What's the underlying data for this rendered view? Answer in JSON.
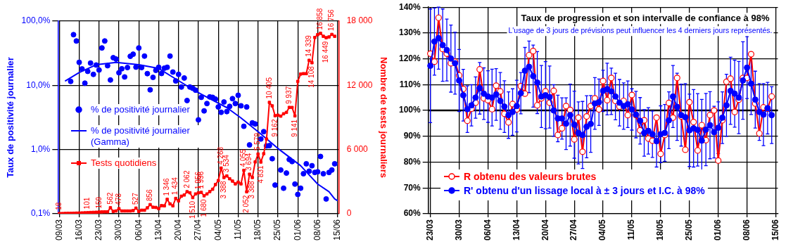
{
  "chart_data": [
    {
      "type": "line",
      "ylabel": "Taux de positivité journalier",
      "y2label": "Nombre de tests journaliers",
      "log": "y",
      "grid": true,
      "legend": "left",
      "categories": [
        "09/03",
        null,
        null,
        null,
        null,
        null,
        null,
        "16/03",
        null,
        null,
        null,
        null,
        null,
        null,
        "23/03",
        null,
        null,
        null,
        null,
        null,
        null,
        "30/03",
        null,
        null,
        null,
        null,
        null,
        null,
        "06/04",
        null,
        null,
        null,
        null,
        null,
        null,
        "13/04",
        null,
        null,
        null,
        null,
        null,
        null,
        "20/04",
        null,
        null,
        null,
        null,
        null,
        null,
        "27/04",
        null,
        null,
        null,
        null,
        null,
        null,
        "04/05",
        null,
        null,
        null,
        null,
        null,
        null,
        "11/05",
        null,
        null,
        null,
        null,
        null,
        null,
        "18/05",
        null,
        null,
        null,
        null,
        null,
        null,
        "25/05",
        null,
        null,
        null,
        null,
        null,
        null,
        "01/06",
        null,
        null,
        null,
        null,
        null,
        null,
        "08/06",
        null,
        null,
        null,
        null,
        null,
        null,
        "15/06"
      ],
      "ylim": [
        0.1,
        100
      ],
      "yticks": [
        {
          "value": 0.1,
          "label": "0,1%"
        },
        {
          "value": 1,
          "label": "1,0%"
        },
        {
          "value": 10,
          "label": "10,0%"
        },
        {
          "value": 100,
          "label": "100,0%"
        }
      ],
      "y2lim": [
        0,
        18000
      ],
      "y2ticks": [
        0,
        {
          "value": 6000,
          "label": "6 000"
        },
        {
          "value": 12000,
          "label": "12 000"
        },
        {
          "value": 18000,
          "label": "18 000"
        }
      ],
      "series": [
        {
          "name": "% de positivité journalier",
          "type": "scatter",
          "marker": "circle",
          "color": "#0000ff",
          "values": [
            null,
            null,
            null,
            null,
            11.5,
            61.5,
            49,
            22.8,
            18,
            10.8,
            16.5,
            22.2,
            14.8,
            20.7,
            17.3,
            38.2,
            49,
            20.2,
            12.1,
            26.9,
            25.6,
            15.7,
            18.1,
            13.5,
            18.9,
            28.3,
            30.5,
            19.2,
            38.2,
            18.9,
            28.5,
            15.2,
            8.5,
            13.3,
            17.1,
            19.1,
            15.3,
            18.5,
            19.1,
            28.5,
            16.1,
            11.7,
            14.8,
            9.4,
            13,
            5.8,
            9.4,
            9,
            8.4,
            2.9,
            6.5,
            4,
            5.2,
            6.6,
            6.5,
            6.1,
            4.6,
            3.8,
            5.5,
            3.9,
            4.7,
            6.2,
            5.2,
            7,
            4.8,
            2.3,
            4.6,
            1.18,
            2.6,
            2.5,
            null,
            1.46,
            1.9,
            1.14,
            1.15,
            0.72,
            0.28,
            null,
            0.48,
            0.25,
            0.43,
            0.7,
            0.65,
            0.29,
            0.2,
            0.25,
            0.42,
            0.6,
            0.46,
            0.56,
            0.44,
            0.45,
            0.78,
            0.42,
            0.17,
            0.44,
            0.48,
            0.6,
            null
          ]
        },
        {
          "name": "% de positivité journalier (Gamma)",
          "marker": "none",
          "color": "#0000ff",
          "values": [
            null,
            null,
            11.6,
            null,
            null,
            null,
            null,
            15.8,
            null,
            null,
            null,
            null,
            null,
            20.9,
            null,
            null,
            null,
            null,
            null,
            null,
            22.8,
            null,
            null,
            null,
            null,
            null,
            null,
            null,
            20.9,
            null,
            null,
            null,
            null,
            null,
            null,
            18.3,
            null,
            null,
            null,
            null,
            null,
            null,
            11.8,
            null,
            null,
            null,
            null,
            null,
            8.1,
            null,
            null,
            null,
            null,
            6.2,
            null,
            null,
            null,
            null,
            null,
            4.5,
            null,
            null,
            null,
            null,
            3.1,
            null,
            null,
            null,
            null,
            null,
            1.9,
            null,
            null,
            null,
            null,
            null,
            null,
            1.04,
            null,
            null,
            null,
            null,
            null,
            null,
            null,
            0.56,
            null,
            null,
            null,
            null,
            null,
            0.29,
            null,
            null,
            null,
            0.22,
            null,
            0.17,
            0.16
          ]
        },
        {
          "name": "Tests quotidiens",
          "axis": "y2",
          "marker": "square",
          "color": "#ff0000",
          "values": [
            18,
            20,
            30,
            40,
            40,
            50,
            60,
            70,
            80,
            90,
            101,
            120,
            130,
            140,
            159,
            170,
            180,
            180,
            562,
            220,
            260,
            478,
            260,
            260,
            260,
            260,
            300,
            527,
            220,
            330,
            330,
            550,
            856,
            610,
            590,
            480,
            760,
            740,
            1346,
            920,
            740,
            1434,
            1200,
            1640,
            1750,
            2062,
            1960,
            1510,
            1850,
            1956,
            1996,
            1680,
            1850,
            2070,
            2290,
            2730,
            3100,
            4268,
            3388,
            3534,
            3270,
            3050,
            2790,
            2950,
            2790,
            4055,
            2052,
            3694,
            3388,
            4840,
            5579,
            4831,
            5610,
            6980,
            10405,
            10080,
            9162,
            9210,
            9120,
            9340,
            9470,
            9937,
            9930,
            9141,
            12370,
            13050,
            13090,
            13090,
            14339,
            14108,
            16470,
            16730,
            16858,
            16580,
            16449,
            16520,
            16756,
            16580,
            null
          ],
          "value_labels": [
            "18",
            null,
            null,
            null,
            null,
            null,
            null,
            null,
            null,
            null,
            "101",
            null,
            null,
            null,
            "159",
            null,
            null,
            null,
            "562",
            null,
            null,
            "478",
            null,
            null,
            null,
            null,
            null,
            "527",
            null,
            null,
            null,
            null,
            "856",
            null,
            null,
            null,
            null,
            null,
            "1 346",
            null,
            null,
            "1 434",
            null,
            null,
            null,
            "2 062",
            null,
            "1 510",
            null,
            "1 956",
            "1 996",
            "1 680",
            null,
            null,
            null,
            null,
            null,
            "4 268",
            "3 388",
            "3 534",
            null,
            null,
            null,
            null,
            null,
            "4 055",
            "2 052",
            "3 694",
            "3 388",
            null,
            "5 579",
            "4 831",
            null,
            null,
            "10 405",
            null,
            "9 162",
            null,
            null,
            null,
            null,
            "9 937",
            null,
            "9 141",
            null,
            null,
            null,
            null,
            "14 339",
            "14 108",
            null,
            null,
            "16 858",
            null,
            "16 449",
            null,
            "16 756",
            null,
            null
          ]
        }
      ]
    },
    {
      "type": "line",
      "title": "Taux de progression et son intervalle de confiance à 98%",
      "subtitle": "L'usage de 3 jours de prévisions peut influencer les 4 derniers jours représentés.",
      "grid": true,
      "legend": "bottom left",
      "categories": [
        "23/03",
        null,
        null,
        null,
        null,
        null,
        null,
        "30/03",
        null,
        null,
        null,
        null,
        null,
        null,
        "06/04",
        null,
        null,
        null,
        null,
        null,
        null,
        "13/04",
        null,
        null,
        null,
        null,
        null,
        null,
        "20/04",
        null,
        null,
        null,
        null,
        null,
        null,
        "27/04",
        null,
        null,
        null,
        null,
        null,
        null,
        "04/05",
        null,
        null,
        null,
        null,
        null,
        null,
        "11/05",
        null,
        null,
        null,
        null,
        null,
        null,
        "18/05",
        null,
        null,
        null,
        null,
        null,
        null,
        "25/05",
        null,
        null,
        null,
        null,
        null,
        null,
        "01/06",
        null,
        null,
        null,
        null,
        null,
        null,
        "08/06",
        null,
        null,
        null,
        null,
        null,
        null,
        "15/06"
      ],
      "ylim": [
        60,
        140
      ],
      "yticks": [
        {
          "value": 60,
          "label": "60%"
        },
        {
          "value": 70,
          "label": "70%"
        },
        {
          "value": 80,
          "label": "80%"
        },
        {
          "value": 90,
          "label": "90%"
        },
        {
          "value": 100,
          "label": "100%"
        },
        {
          "value": 110,
          "label": "110%"
        },
        {
          "value": 120,
          "label": "120%"
        },
        {
          "value": 130,
          "label": "130%"
        },
        {
          "value": 140,
          "label": "140%"
        }
      ],
      "ref_lines": [
        {
          "axis": "y",
          "value": 100,
          "color": "#000000"
        }
      ],
      "series": [
        {
          "name": "R obtenu des valeurs brutes",
          "marker": "circle",
          "color": "#ff0000",
          "values": [
            122,
            118.9,
            135.9,
            123.8,
            122,
            118.3,
            118.9,
            113.6,
            108.3,
            96,
            100.7,
            103,
            115.9,
            104.7,
            104,
            100.5,
            109.6,
            107.4,
            98.7,
            95.4,
            102.5,
            100.4,
            109.4,
            106.5,
            121.4,
            123,
            102,
            104.7,
            107.4,
            103,
            107.6,
            90.5,
            93.1,
            101.7,
            100.2,
            88.8,
            97.2,
            84,
            97.7,
            101.7,
            104.7,
            100.4,
            111.4,
            104,
            112.6,
            103.7,
            101.5,
            103.7,
            98.2,
            106,
            98.2,
            92.3,
            96.2,
            89.1,
            88.3,
            97.2,
            83.2,
            90.5,
            102.9,
            97.2,
            112.6,
            97.7,
            84.8,
            103.2,
            95.5,
            84.5,
            94.3,
            88.5,
            98.2,
            100,
            80.6,
            96.2,
            111.1,
            112.3,
            99.4,
            104.2,
            112.6,
            112.6,
            121.8,
            102.7,
            91.1,
            101.2,
            100.7,
            105.4,
            null
          ]
        },
        {
          "name": "R' obtenu d'un lissage local à ± 3 jours et I.C. à 98%",
          "marker": "circle",
          "color": "#0000ff",
          "values": [
            117.3,
            126.7,
            128,
            125.3,
            123.4,
            120.1,
            118.3,
            111.6,
            105.9,
            100.5,
            102,
            105,
            108.6,
            106.5,
            105.4,
            105,
            106.2,
            103.7,
            101.5,
            98.2,
            99.4,
            101.7,
            106.7,
            115.4,
            116.9,
            113.3,
            110.8,
            105.4,
            105.9,
            105.2,
            100,
            96.9,
            96.9,
            94.9,
            98.2,
            94.5,
            91.3,
            90.5,
            93.7,
            94.8,
            102.7,
            103.2,
            107.6,
            108.3,
            107.4,
            105.4,
            103,
            101.7,
            102.4,
            100.4,
            98.4,
            96,
            91.3,
            92.1,
            90.8,
            88.1,
            90.8,
            91.3,
            96.2,
            105.4,
            101.4,
            98.2,
            97.4,
            92.3,
            93.1,
            92.5,
            88.3,
            92.6,
            94.3,
            91.6,
            93.3,
            97.2,
            102,
            107.6,
            106.5,
            105,
            111.6,
            116.6,
            110.4,
            104.2,
            99.4,
            98.4,
            100.9,
            98.2,
            null
          ],
          "errors": [
            22,
            13,
            12,
            14,
            12,
            13,
            12,
            12,
            10,
            9,
            8,
            8,
            10,
            10,
            10,
            11,
            10,
            11,
            10,
            9,
            9,
            10,
            8,
            9,
            10,
            12,
            12,
            12,
            13,
            12,
            10,
            9,
            8,
            10,
            12,
            13,
            12,
            13,
            12,
            11,
            10,
            9,
            8,
            10,
            9,
            9,
            9,
            9,
            9,
            8,
            9,
            9,
            9,
            9,
            9,
            10,
            11,
            11,
            11,
            12,
            13,
            12,
            13,
            14,
            15,
            14,
            16,
            14,
            13,
            10,
            10,
            10,
            12,
            13,
            13,
            14,
            15,
            12,
            12,
            11,
            11,
            12,
            10,
            11,
            null
          ]
        }
      ]
    }
  ]
}
